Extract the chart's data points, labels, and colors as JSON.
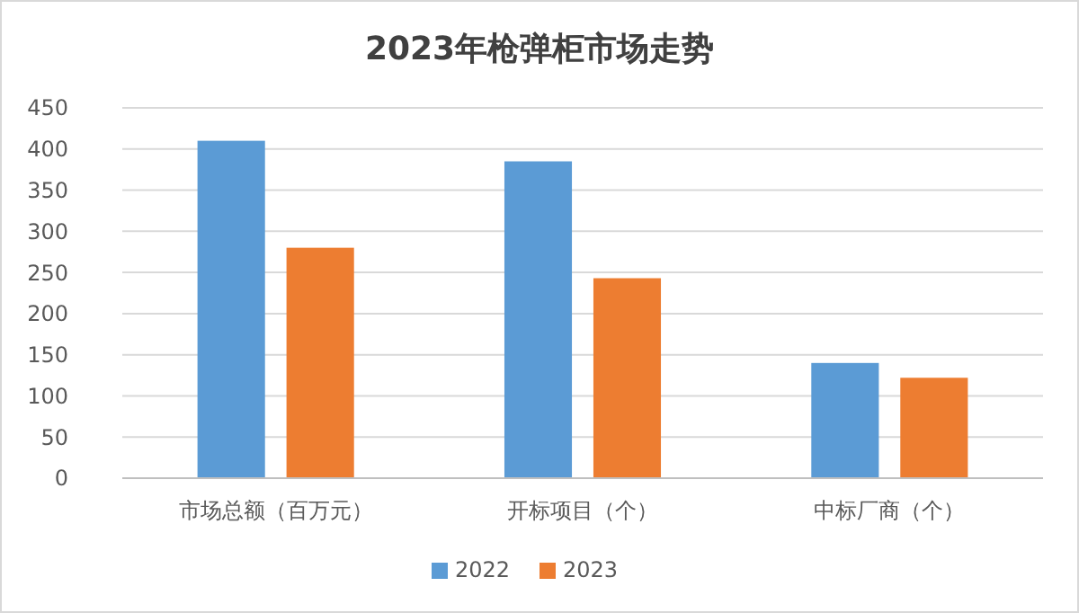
{
  "chart_data": {
    "type": "bar",
    "title": "2023年枪弹柜市场走势",
    "categories": [
      "市场总额（百万元）",
      "开标项目（个）",
      "中标厂商（个）"
    ],
    "series": [
      {
        "name": "2022",
        "color": "#5b9bd5",
        "values": [
          410,
          385,
          140
        ]
      },
      {
        "name": "2023",
        "color": "#ed7d31",
        "values": [
          280,
          243,
          122
        ]
      }
    ],
    "ylim": [
      0,
      450
    ],
    "yticks": [
      0,
      50,
      100,
      150,
      200,
      250,
      300,
      350,
      400,
      450
    ],
    "grid": "y",
    "legend": "bottom"
  }
}
